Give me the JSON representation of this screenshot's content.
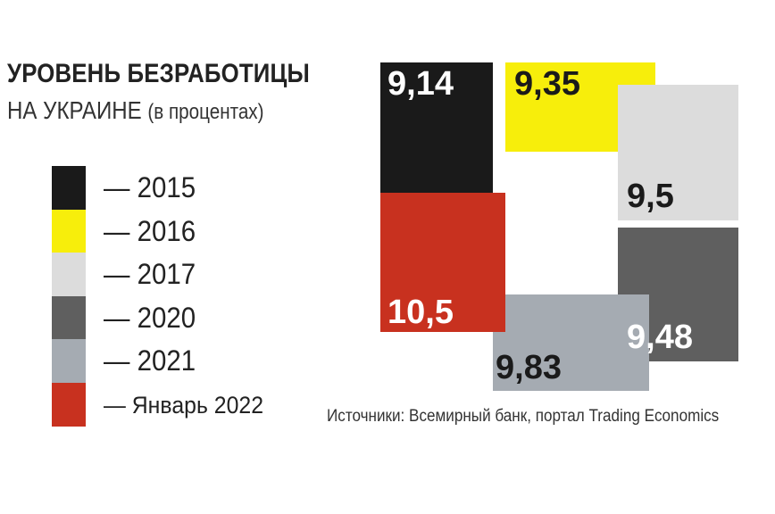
{
  "title": {
    "main": "УРОВЕНЬ БЕЗРАБОТИЦЫ",
    "sub": "НА УКРАИНЕ",
    "sub_paren": "(в процентах)"
  },
  "legend": [
    {
      "label": "2015",
      "color": "#1a1a1a"
    },
    {
      "label": "2016",
      "color": "#f7ee0b"
    },
    {
      "label": "2017",
      "color": "#dcdcdc"
    },
    {
      "label": "2020",
      "color": "#5f5f5f"
    },
    {
      "label": "2021",
      "color": "#a5abb2"
    },
    {
      "label": "Январь 2022",
      "color": "#c8311f"
    }
  ],
  "legend_dash": "—",
  "chart_data": {
    "type": "bar",
    "title": "УРОВЕНЬ БЕЗРАБОТИЦЫ НА УКРАИНЕ (в процентах)",
    "categories": [
      "2015",
      "2016",
      "2017",
      "2020",
      "2021",
      "Январь 2022"
    ],
    "values": [
      9.14,
      9.35,
      9.5,
      9.48,
      9.83,
      10.5
    ],
    "value_labels": [
      "9,14",
      "9,35",
      "9,5",
      "9,48",
      "9,83",
      "10,5"
    ],
    "colors": [
      "#1a1a1a",
      "#f7ee0b",
      "#dcdcdc",
      "#5f5f5f",
      "#a5abb2",
      "#c8311f"
    ],
    "label_colors": [
      "#ffffff",
      "#1a1a1a",
      "#1a1a1a",
      "#ffffff",
      "#1a1a1a",
      "#ffffff"
    ]
  },
  "source": "Источники: Всемирный банк, портал Trading Economics"
}
